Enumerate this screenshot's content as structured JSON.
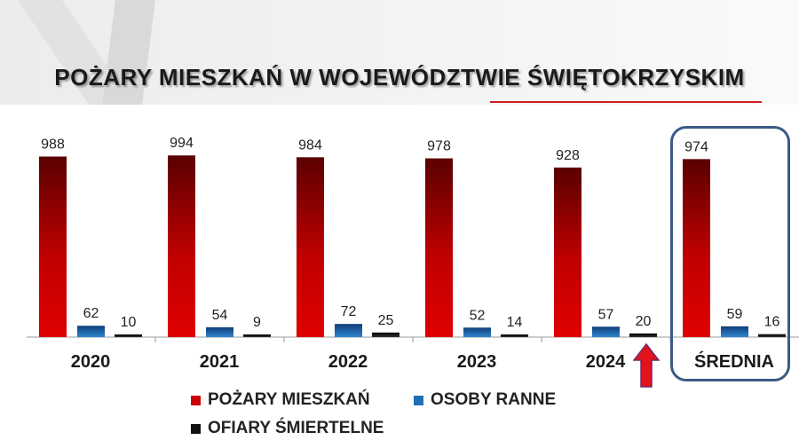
{
  "title": "POŻARY MIESZKAŃ W WOJEWÓDZTWIE ŚWIĘTOKRZYSKIM",
  "colors": {
    "pozary": "#cc0000",
    "ranne": "#1f6fb8",
    "ofiary": "#111111",
    "highlight": "#3b5a86",
    "arrow": "#e3121b"
  },
  "chart_data": {
    "type": "bar",
    "categories": [
      "2020",
      "2021",
      "2022",
      "2023",
      "2024",
      "ŚREDNIA"
    ],
    "series": [
      {
        "name": "POŻARY MIESZKAŃ",
        "values": [
          988,
          994,
          984,
          978,
          928,
          974
        ]
      },
      {
        "name": "OSOBY RANNE",
        "values": [
          62,
          54,
          72,
          52,
          57,
          59
        ]
      },
      {
        "name": "OFIARY ŚMIERTELNE",
        "values": [
          10,
          9,
          25,
          14,
          20,
          16
        ]
      }
    ],
    "data_labels": true,
    "ylim": [
      0,
      1000
    ],
    "legend": "bottom",
    "grid": false,
    "highlighted_category": "ŚREDNIA",
    "marked_category": "2024"
  }
}
